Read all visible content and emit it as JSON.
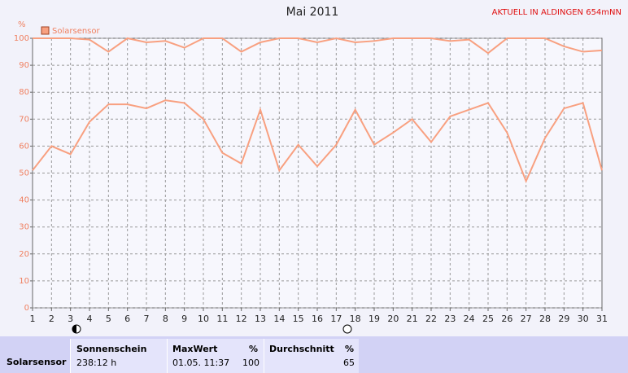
{
  "chart_data": {
    "type": "line",
    "title": "Mai 2011",
    "subtitle": "AKTUELL IN ALDINGEN 654mNN",
    "ylabel": "%",
    "categories": [
      "1",
      "2",
      "3",
      "4",
      "5",
      "6",
      "7",
      "8",
      "9",
      "10",
      "11",
      "12",
      "13",
      "14",
      "15",
      "16",
      "17",
      "18",
      "19",
      "20",
      "21",
      "22",
      "23",
      "24",
      "25",
      "26",
      "27",
      "28",
      "29",
      "30",
      "31"
    ],
    "series": [
      {
        "name": "Solarsensor",
        "color": "#f8a080",
        "values": [
          51,
          60,
          57,
          69,
          75.5,
          75.5,
          74,
          77,
          76,
          70,
          57.5,
          53.5,
          73.5,
          51,
          60.5,
          52.5,
          60.5,
          73.5,
          60.5,
          65,
          70,
          61.5,
          71,
          73.5,
          76,
          65,
          47,
          63,
          74,
          76,
          51
        ]
      },
      {
        "color": "#f8a080",
        "values": [
          100,
          100,
          100,
          99.5,
          95,
          100,
          98.5,
          99,
          96.5,
          100,
          100,
          95,
          98.5,
          100,
          100,
          98.5,
          100,
          98.5,
          99,
          100,
          100,
          100,
          99,
          99.5,
          94.5,
          100,
          100,
          100,
          97,
          95,
          95.5
        ]
      }
    ],
    "ylim": [
      0,
      100
    ],
    "yticks": [
      0,
      10,
      20,
      30,
      40,
      50,
      60,
      70,
      80,
      90,
      100
    ],
    "grid": true
  },
  "summary": {
    "row_label": "Solarsensor",
    "sunshine": {
      "header": "Sonnenschein",
      "value": "238:12 h"
    },
    "max": {
      "header": "MaxWert",
      "unit": "%",
      "time": "01.05. 11:37",
      "value": 100
    },
    "average": {
      "header": "Durchschnitt",
      "unit": "%",
      "value": 65
    }
  }
}
